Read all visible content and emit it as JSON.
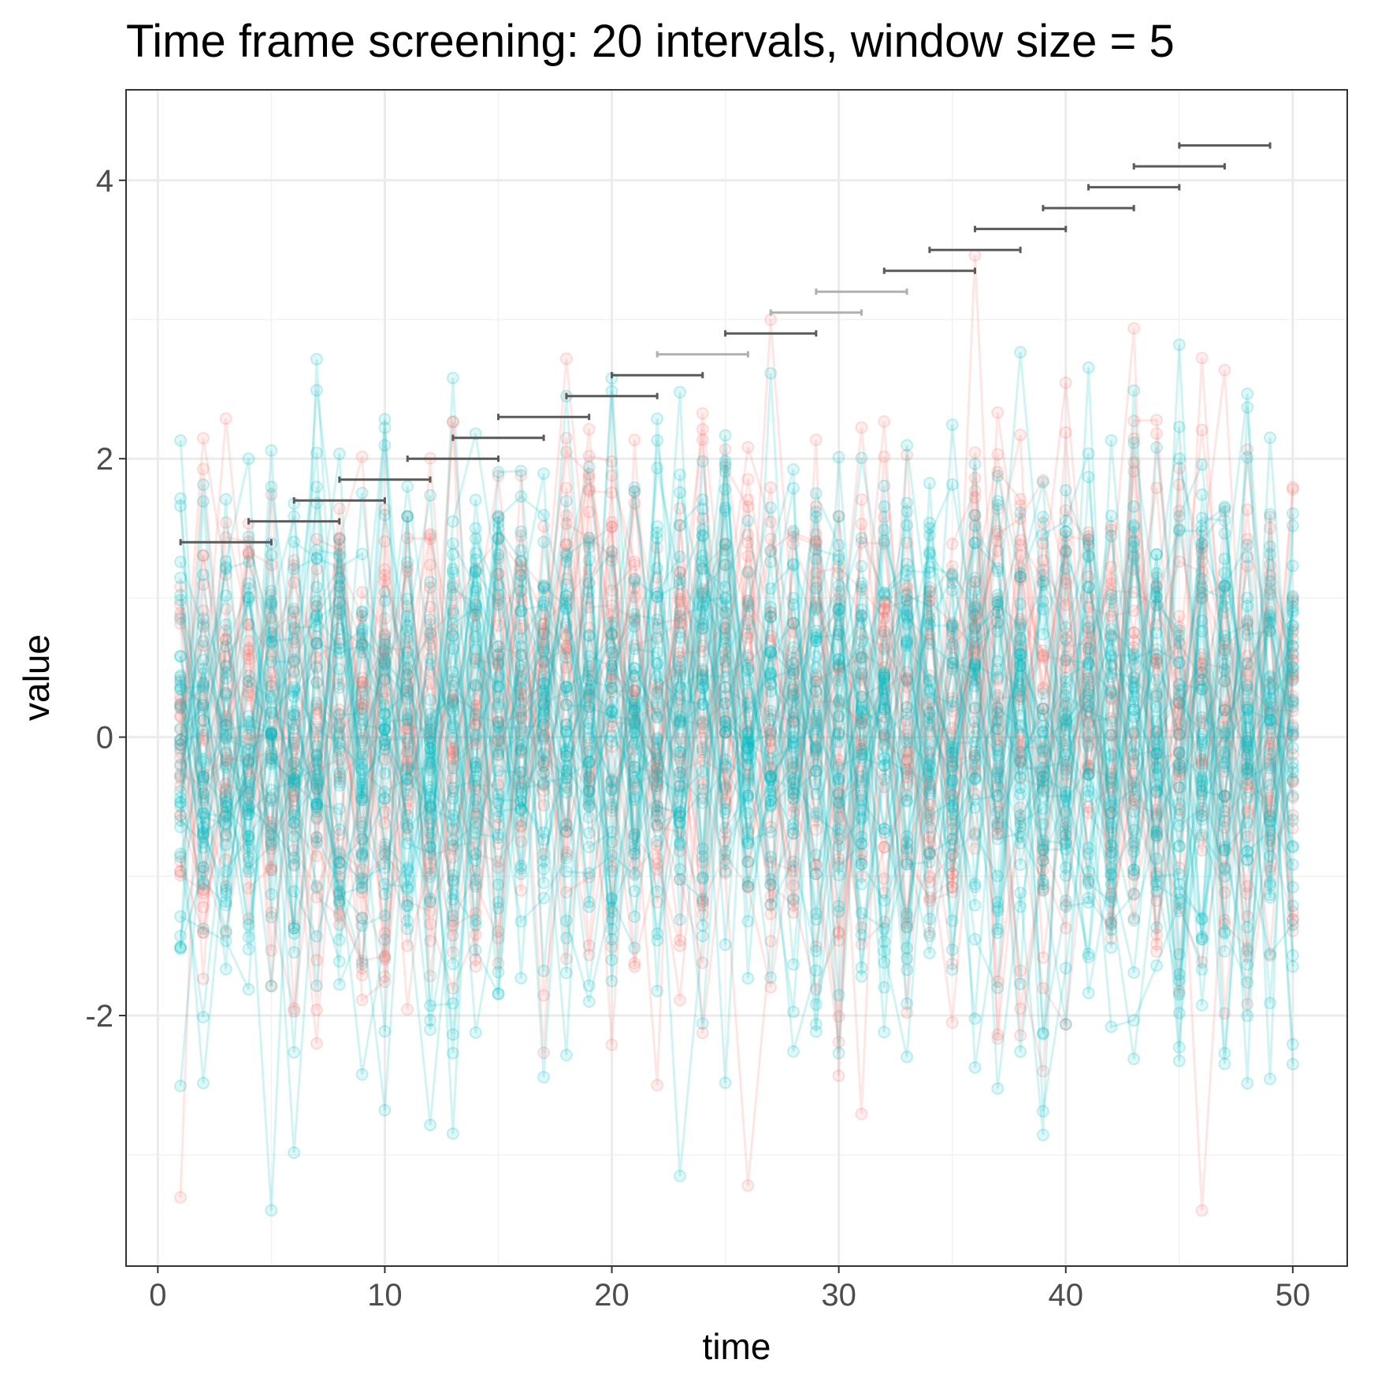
{
  "chart_data": {
    "type": "line",
    "title": "Time frame screening: 20 intervals, window size = 5",
    "xlabel": "time",
    "ylabel": "value",
    "xlim": [
      -1.4,
      52.4
    ],
    "ylim": [
      -3.8,
      4.65
    ],
    "x_ticks": [
      0,
      10,
      20,
      30,
      40,
      50
    ],
    "x_tick_labels": [
      "0",
      "10",
      "20",
      "30",
      "40",
      "50"
    ],
    "y_ticks": [
      -2,
      0,
      2,
      4
    ],
    "y_tick_labels": [
      "-2",
      "0",
      "2",
      "4"
    ],
    "grid": true,
    "legend": "none",
    "x": [
      1,
      2,
      3,
      4,
      5,
      6,
      7,
      8,
      9,
      10,
      11,
      12,
      13,
      14,
      15,
      16,
      17,
      18,
      19,
      20,
      21,
      22,
      23,
      24,
      25,
      26,
      27,
      28,
      29,
      30,
      31,
      32,
      33,
      34,
      35,
      36,
      37,
      38,
      39,
      40,
      41,
      42,
      43,
      44,
      45,
      46,
      47,
      48,
      49,
      50
    ],
    "series_groups": [
      {
        "color": "#F8766D",
        "count": 30
      },
      {
        "color": "#00BFC4",
        "count": 40
      }
    ],
    "series_note": "noisy time series around 0 (sd ~1); red group has elevated values near time 15-20 and 36-46",
    "intervals": [
      {
        "start": 1,
        "end": 5,
        "y": 1.4,
        "significant": true
      },
      {
        "start": 4,
        "end": 8,
        "y": 1.55,
        "significant": true
      },
      {
        "start": 6,
        "end": 10,
        "y": 1.7,
        "significant": true
      },
      {
        "start": 8,
        "end": 12,
        "y": 1.85,
        "significant": true
      },
      {
        "start": 11,
        "end": 15,
        "y": 2.0,
        "significant": true
      },
      {
        "start": 13,
        "end": 17,
        "y": 2.15,
        "significant": true
      },
      {
        "start": 15,
        "end": 19,
        "y": 2.3,
        "significant": true
      },
      {
        "start": 18,
        "end": 22,
        "y": 2.45,
        "significant": true
      },
      {
        "start": 20,
        "end": 24,
        "y": 2.6,
        "significant": true
      },
      {
        "start": 22,
        "end": 26,
        "y": 2.75,
        "significant": false
      },
      {
        "start": 25,
        "end": 29,
        "y": 2.9,
        "significant": true
      },
      {
        "start": 27,
        "end": 31,
        "y": 3.05,
        "significant": false
      },
      {
        "start": 29,
        "end": 33,
        "y": 3.2,
        "significant": false
      },
      {
        "start": 32,
        "end": 36,
        "y": 3.35,
        "significant": true
      },
      {
        "start": 34,
        "end": 38,
        "y": 3.5,
        "significant": true
      },
      {
        "start": 36,
        "end": 40,
        "y": 3.65,
        "significant": true
      },
      {
        "start": 39,
        "end": 43,
        "y": 3.8,
        "significant": true
      },
      {
        "start": 41,
        "end": 45,
        "y": 3.95,
        "significant": true
      },
      {
        "start": 43,
        "end": 47,
        "y": 4.1,
        "significant": true
      },
      {
        "start": 45,
        "end": 49,
        "y": 4.25,
        "significant": true
      }
    ]
  }
}
